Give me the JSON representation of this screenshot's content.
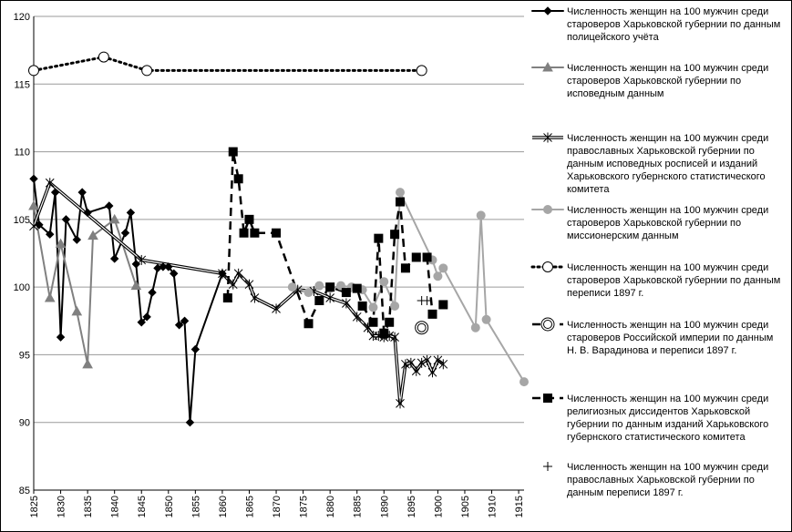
{
  "chart_data": {
    "type": "line",
    "title": "",
    "xlabel": "",
    "ylabel": "",
    "xlim": [
      1825,
      1916
    ],
    "ylim": [
      85,
      120
    ],
    "xticks": [
      1825,
      1830,
      1835,
      1840,
      1845,
      1850,
      1855,
      1860,
      1865,
      1870,
      1875,
      1880,
      1885,
      1890,
      1895,
      1900,
      1905,
      1910,
      1915
    ],
    "yticks": [
      85,
      90,
      95,
      100,
      105,
      110,
      115,
      120
    ],
    "grid": "horizontal",
    "legend_position": "right",
    "series": [
      {
        "name": "Численность женщин на 100 мужчин среди староверов Харьковской губернии по данным полицейского учёта",
        "color": "#000000",
        "marker": "diamond",
        "line": "solid",
        "x": [
          1825,
          1826,
          1828,
          1829,
          1830,
          1831,
          1833,
          1834,
          1835,
          1839,
          1840,
          1842,
          1843,
          1844,
          1845,
          1846,
          1847,
          1848,
          1849,
          1850,
          1851,
          1852,
          1853,
          1854,
          1855,
          1860
        ],
        "y": [
          108.0,
          104.6,
          103.9,
          107.0,
          96.3,
          105.0,
          103.5,
          107.0,
          105.5,
          106.0,
          102.1,
          104.0,
          105.5,
          101.7,
          97.4,
          97.8,
          99.6,
          101.4,
          101.5,
          101.5,
          101.0,
          97.2,
          97.5,
          90.0,
          95.4,
          101.0
        ]
      },
      {
        "name": "Численность женщин на 100 мужчин среди староверов Харьковской губернии по исповедным данным",
        "color": "#808080",
        "marker": "triangle",
        "line": "solid",
        "x": [
          1825,
          1828,
          1830,
          1833,
          1835,
          1836,
          1840,
          1844
        ],
        "y": [
          106.0,
          99.2,
          103.2,
          98.2,
          94.3,
          103.8,
          105.0,
          100.1
        ]
      },
      {
        "name": "Численность женщин на 100 мужчин среди православных Харьковской губернии по данным исповедных росписей и изданий Харьковского губернского статистического комитета",
        "color": "#000000",
        "marker": "asterisk",
        "line": "double",
        "x": [
          1825,
          1828,
          1845,
          1860,
          1862,
          1863,
          1865,
          1866,
          1870,
          1874,
          1877,
          1880,
          1883,
          1885,
          1887,
          1888,
          1889,
          1890,
          1891,
          1892,
          1893,
          1894,
          1895,
          1896,
          1897,
          1898,
          1899,
          1900,
          1901
        ],
        "y": [
          104.5,
          107.7,
          102.0,
          101.0,
          100.2,
          101.0,
          100.2,
          99.2,
          98.4,
          99.8,
          99.7,
          99.2,
          98.8,
          97.8,
          97.0,
          96.4,
          96.4,
          96.3,
          96.4,
          96.3,
          91.4,
          94.3,
          94.4,
          93.8,
          94.4,
          94.6,
          93.7,
          94.6,
          94.3
        ]
      },
      {
        "name": "Численность женщин на 100 мужчин среди староверов Харьковской губернии по миссионерским данным",
        "color": "#a6a6a6",
        "marker": "circle",
        "line": "solid",
        "x": [
          1873,
          1876,
          1878,
          1880,
          1882,
          1884,
          1886,
          1888,
          1890,
          1892,
          1893,
          1899,
          1900,
          1901,
          1907,
          1908,
          1909,
          1916
        ],
        "y": [
          100.0,
          99.6,
          100.1,
          99.9,
          100.1,
          100.0,
          99.8,
          98.5,
          100.4,
          98.6,
          107.0,
          102.0,
          100.8,
          101.4,
          97.0,
          105.3,
          97.6,
          93.0
        ]
      },
      {
        "name": "Численность женщин на 100 мужчин среди староверов Харьковской губернии по данным переписи 1897 г.",
        "color": "#000000",
        "marker": "open-circle",
        "line": "dotted",
        "x": [
          1825,
          1838,
          1846,
          1897
        ],
        "y": [
          116.0,
          117.0,
          116.0,
          116.0
        ]
      },
      {
        "name": "Численность женщин на 100 мужчин среди староверов Российской империи по данным Н. В. Варадинова и переписи 1897 г.",
        "color": "#000000",
        "marker": "double-circle",
        "line": "dashed",
        "x": [
          1897
        ],
        "y": [
          97.0
        ]
      },
      {
        "name": "Численность женщин на 100 мужчин среди религиозных диссидентов  Харьковской губернии по данным изданий Харьковского губернского статистического комитета",
        "color": "#000000",
        "marker": "square",
        "line": "dashed",
        "x": [
          1861,
          1862,
          1863,
          1864,
          1865,
          1866,
          1870,
          1876,
          1878,
          1880,
          1883,
          1885,
          1886,
          1888,
          1889,
          1890,
          1891,
          1892,
          1893,
          1894,
          1896,
          1898,
          1899,
          1901
        ],
        "y": [
          99.2,
          110.0,
          108.0,
          104.0,
          105.0,
          104.0,
          104.0,
          97.3,
          99.0,
          100.0,
          99.6,
          99.9,
          98.6,
          97.4,
          103.6,
          96.6,
          97.4,
          103.9,
          106.3,
          101.4,
          102.2,
          102.2,
          98.0,
          98.7
        ]
      },
      {
        "name": "Численность женщин на 100 мужчин среди православных Харьковской губернии по данным переписи 1897 г.",
        "color": "#000000",
        "marker": "plus",
        "line": "none",
        "x": [
          1897,
          1898
        ],
        "y": [
          99.0,
          99.0
        ]
      }
    ]
  }
}
